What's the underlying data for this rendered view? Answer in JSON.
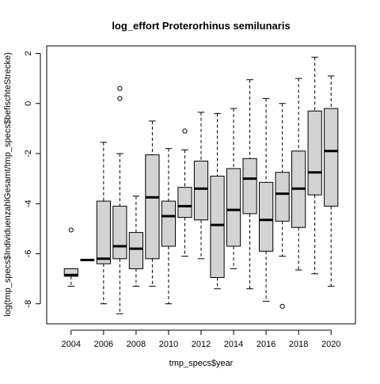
{
  "chart_data": {
    "type": "boxplot",
    "title": "log_effort Proterorhinus semilunaris",
    "xlabel": "tmp_specs$year",
    "ylabel": "log(tmp_specs$IndividuenzahlGesamt/tmp_specs$befischteStrecke)",
    "xlim": [
      2002.5,
      2021.5
    ],
    "ylim": [
      -8.8,
      2.3
    ],
    "x_ticks": [
      2004,
      2006,
      2008,
      2010,
      2012,
      2014,
      2016,
      2018,
      2020
    ],
    "y_ticks": [
      -8,
      -6,
      -4,
      -2,
      0,
      2
    ],
    "grid": false,
    "box_fill": "#d3d3d3",
    "groups": [
      {
        "year": 2004,
        "whisker_low": -7.3,
        "q1": -6.9,
        "median": -6.85,
        "q3": -6.6,
        "whisker_high": -6.6,
        "outliers": [
          -5.05
        ]
      },
      {
        "year": 2005,
        "whisker_low": -6.25,
        "q1": -6.25,
        "median": -6.25,
        "q3": -6.25,
        "whisker_high": -6.25,
        "outliers": []
      },
      {
        "year": 2006,
        "whisker_low": -8.0,
        "q1": -6.4,
        "median": -6.2,
        "q3": -3.9,
        "whisker_high": -1.55,
        "outliers": []
      },
      {
        "year": 2007,
        "whisker_low": -8.4,
        "q1": -6.2,
        "median": -5.7,
        "q3": -4.1,
        "whisker_high": -2.0,
        "outliers": [
          0.6,
          0.2
        ]
      },
      {
        "year": 2008,
        "whisker_low": -7.3,
        "q1": -6.6,
        "median": -5.8,
        "q3": -5.15,
        "whisker_high": -3.7,
        "outliers": []
      },
      {
        "year": 2009,
        "whisker_low": -7.3,
        "q1": -6.2,
        "median": -3.75,
        "q3": -2.05,
        "whisker_high": -0.7,
        "outliers": []
      },
      {
        "year": 2010,
        "whisker_low": -8.0,
        "q1": -5.7,
        "median": -4.5,
        "q3": -3.9,
        "whisker_high": -1.8,
        "outliers": []
      },
      {
        "year": 2011,
        "whisker_low": -6.1,
        "q1": -4.55,
        "median": -4.1,
        "q3": -3.35,
        "whisker_high": -1.85,
        "outliers": [
          -1.1
        ]
      },
      {
        "year": 2012,
        "whisker_low": -6.2,
        "q1": -4.65,
        "median": -3.4,
        "q3": -2.3,
        "whisker_high": -0.35,
        "outliers": []
      },
      {
        "year": 2013,
        "whisker_low": -7.4,
        "q1": -6.95,
        "median": -4.85,
        "q3": -2.9,
        "whisker_high": -0.4,
        "outliers": []
      },
      {
        "year": 2014,
        "whisker_low": -6.6,
        "q1": -5.7,
        "median": -4.25,
        "q3": -2.6,
        "whisker_high": -0.2,
        "outliers": []
      },
      {
        "year": 2015,
        "whisker_low": -7.4,
        "q1": -4.4,
        "median": -3.0,
        "q3": -2.2,
        "whisker_high": 0.95,
        "outliers": []
      },
      {
        "year": 2016,
        "whisker_low": -7.9,
        "q1": -5.9,
        "median": -4.65,
        "q3": -3.15,
        "whisker_high": 0.2,
        "outliers": []
      },
      {
        "year": 2017,
        "whisker_low": -6.1,
        "q1": -4.7,
        "median": -3.6,
        "q3": -2.75,
        "whisker_high": 0.0,
        "outliers": [
          -8.1
        ]
      },
      {
        "year": 2018,
        "whisker_low": -6.65,
        "q1": -4.95,
        "median": -3.4,
        "q3": -1.9,
        "whisker_high": 1.0,
        "outliers": []
      },
      {
        "year": 2019,
        "whisker_low": -6.8,
        "q1": -3.65,
        "median": -2.75,
        "q3": -0.3,
        "whisker_high": 1.85,
        "outliers": []
      },
      {
        "year": 2020,
        "whisker_low": -7.3,
        "q1": -4.1,
        "median": -1.9,
        "q3": -0.2,
        "whisker_high": 1.1,
        "outliers": []
      }
    ]
  }
}
